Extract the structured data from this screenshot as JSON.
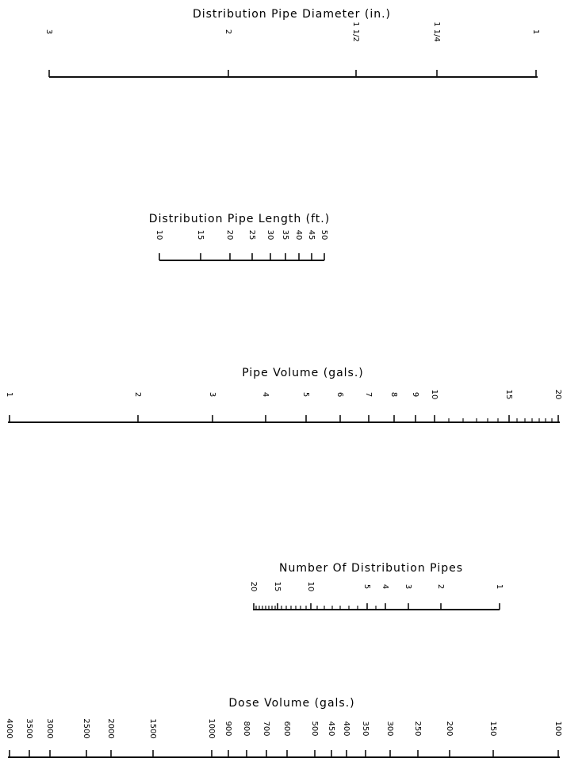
{
  "scales": [
    {
      "id": "diameter",
      "title": "Distribution Pipe Diameter (in.)",
      "ticks": [
        {
          "value": 3,
          "label": "3"
        },
        {
          "value": 2,
          "label": "2"
        },
        {
          "value": 1.5,
          "label": "1 1/2"
        },
        {
          "value": 1.25,
          "label": "1 1/4"
        },
        {
          "value": 1,
          "label": "1"
        }
      ]
    },
    {
      "id": "length",
      "title": "Distribution Pipe Length (ft.)",
      "ticks": [
        {
          "value": 10,
          "label": "10"
        },
        {
          "value": 15,
          "label": "15"
        },
        {
          "value": 20,
          "label": "20"
        },
        {
          "value": 25,
          "label": "25"
        },
        {
          "value": 30,
          "label": "30"
        },
        {
          "value": 35,
          "label": "35"
        },
        {
          "value": 40,
          "label": "40"
        },
        {
          "value": 45,
          "label": "45"
        },
        {
          "value": 50,
          "label": "50"
        }
      ]
    },
    {
      "id": "pipe-volume",
      "title": "Pipe Volume (gals.)",
      "ticks": [
        {
          "value": 1,
          "label": "1"
        },
        {
          "value": 2,
          "label": "2"
        },
        {
          "value": 3,
          "label": "3"
        },
        {
          "value": 4,
          "label": "4"
        },
        {
          "value": 5,
          "label": "5"
        },
        {
          "value": 6,
          "label": "6"
        },
        {
          "value": 7,
          "label": "7"
        },
        {
          "value": 8,
          "label": "8"
        },
        {
          "value": 9,
          "label": "9"
        },
        {
          "value": 10,
          "label": "10"
        },
        {
          "value": 15,
          "label": "15"
        },
        {
          "value": 20,
          "label": "20"
        }
      ]
    },
    {
      "id": "num-pipes",
      "title": "Number Of Distribution Pipes",
      "ticks": [
        {
          "value": 20,
          "label": "20"
        },
        {
          "value": 15,
          "label": "15"
        },
        {
          "value": 10,
          "label": "10"
        },
        {
          "value": 5,
          "label": "5"
        },
        {
          "value": 4,
          "label": "4"
        },
        {
          "value": 3,
          "label": "3"
        },
        {
          "value": 2,
          "label": "2"
        },
        {
          "value": 1,
          "label": "1"
        }
      ]
    },
    {
      "id": "dose-volume",
      "title": "Dose Volume (gals.)",
      "ticks": [
        {
          "value": 4000,
          "label": "4000"
        },
        {
          "value": 3500,
          "label": "3500"
        },
        {
          "value": 3000,
          "label": "3000"
        },
        {
          "value": 2500,
          "label": "2500"
        },
        {
          "value": 2000,
          "label": "2000"
        },
        {
          "value": 1500,
          "label": "1500"
        },
        {
          "value": 1000,
          "label": "1000"
        },
        {
          "value": 900,
          "label": "900"
        },
        {
          "value": 800,
          "label": "800"
        },
        {
          "value": 700,
          "label": "700"
        },
        {
          "value": 600,
          "label": "600"
        },
        {
          "value": 500,
          "label": "500"
        },
        {
          "value": 450,
          "label": "450"
        },
        {
          "value": 400,
          "label": "400"
        },
        {
          "value": 350,
          "label": "350"
        },
        {
          "value": 300,
          "label": "300"
        },
        {
          "value": 250,
          "label": "250"
        },
        {
          "value": 200,
          "label": "200"
        },
        {
          "value": 150,
          "label": "150"
        },
        {
          "value": 100,
          "label": "100"
        }
      ]
    }
  ]
}
